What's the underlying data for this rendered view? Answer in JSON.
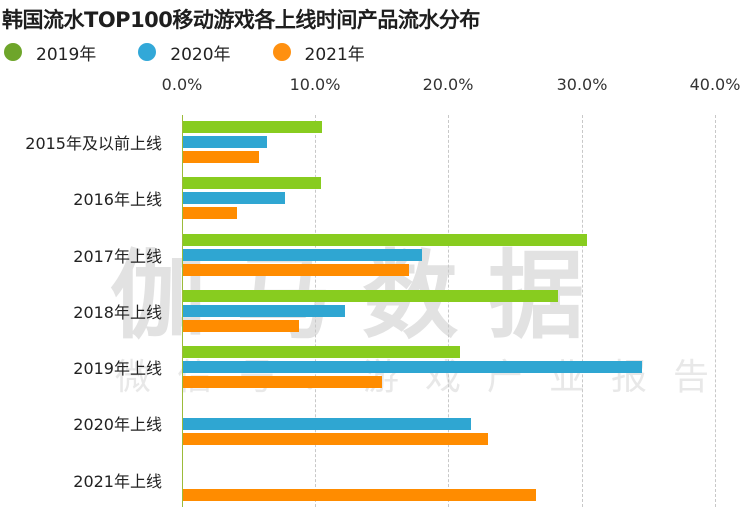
{
  "chart_data": {
    "type": "bar",
    "orientation": "horizontal",
    "title": "韩国流水TOP100移动游戏各上线时间产品流水分布",
    "xlabel": "",
    "ylabel": "",
    "xlim": [
      0,
      40
    ],
    "x_ticks": [
      "0.0%",
      "10.0%",
      "20.0%",
      "30.0%",
      "40.0%"
    ],
    "grid": true,
    "legend_position": "top-left",
    "categories": [
      "2015年及以前上线",
      "2016年上线",
      "2017年上线",
      "2018年上线",
      "2019年上线",
      "2020年上线",
      "2021年上线"
    ],
    "series": [
      {
        "name": "2019年",
        "color": "#88cc1f",
        "legend_color": "#6ea52a",
        "values": [
          10.5,
          10.4,
          30.4,
          28.2,
          20.9,
          null,
          null
        ]
      },
      {
        "name": "2020年",
        "color": "#2fa6d2",
        "legend_color": "#32a8d8",
        "values": [
          6.4,
          7.7,
          18.0,
          12.2,
          34.5,
          21.7,
          null
        ]
      },
      {
        "name": "2021年",
        "color": "#ff8c00",
        "legend_color": "#ff9010",
        "values": [
          5.8,
          4.1,
          17.0,
          8.8,
          15.0,
          23.0,
          26.6
        ]
      }
    ]
  },
  "watermark": {
    "main": "伽马数据",
    "sub": "微信号：游戏产业报告"
  }
}
